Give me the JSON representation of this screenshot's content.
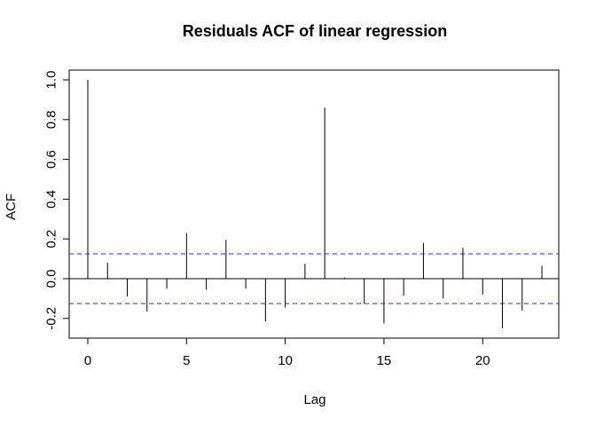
{
  "chart_data": {
    "type": "bar",
    "title": "Residuals ACF of linear regression",
    "xlabel": "Lag",
    "ylabel": "ACF",
    "xlim": [
      -1.0,
      24.0
    ],
    "ylim": [
      -0.3,
      1.0
    ],
    "x_ticks": [
      0,
      5,
      10,
      15,
      20
    ],
    "x_tick_labels": [
      "0",
      "5",
      "10",
      "15",
      "20"
    ],
    "y_ticks": [
      -0.2,
      0.0,
      0.2,
      0.4,
      0.6,
      0.8,
      1.0
    ],
    "y_tick_labels": [
      "-0.2",
      "0.0",
      "0.2",
      "0.4",
      "0.6",
      "0.8",
      "1.0"
    ],
    "lags": [
      0,
      1,
      2,
      3,
      4,
      5,
      6,
      7,
      8,
      9,
      10,
      11,
      12,
      13,
      14,
      15,
      16,
      17,
      18,
      19,
      20,
      21,
      22,
      23
    ],
    "values": [
      1.0,
      0.08,
      -0.09,
      -0.165,
      -0.05,
      0.23,
      -0.055,
      0.195,
      -0.05,
      -0.215,
      -0.145,
      0.075,
      0.86,
      0.005,
      -0.125,
      -0.225,
      -0.085,
      0.18,
      -0.1,
      0.155,
      -0.08,
      -0.25,
      -0.16,
      0.065
    ],
    "confidence_bound": 0.125,
    "colors": {
      "bars": "#000000",
      "zero_line": "#000000",
      "confidence_lines": "#2b2bff",
      "frame": "#000000"
    },
    "grid": false
  }
}
